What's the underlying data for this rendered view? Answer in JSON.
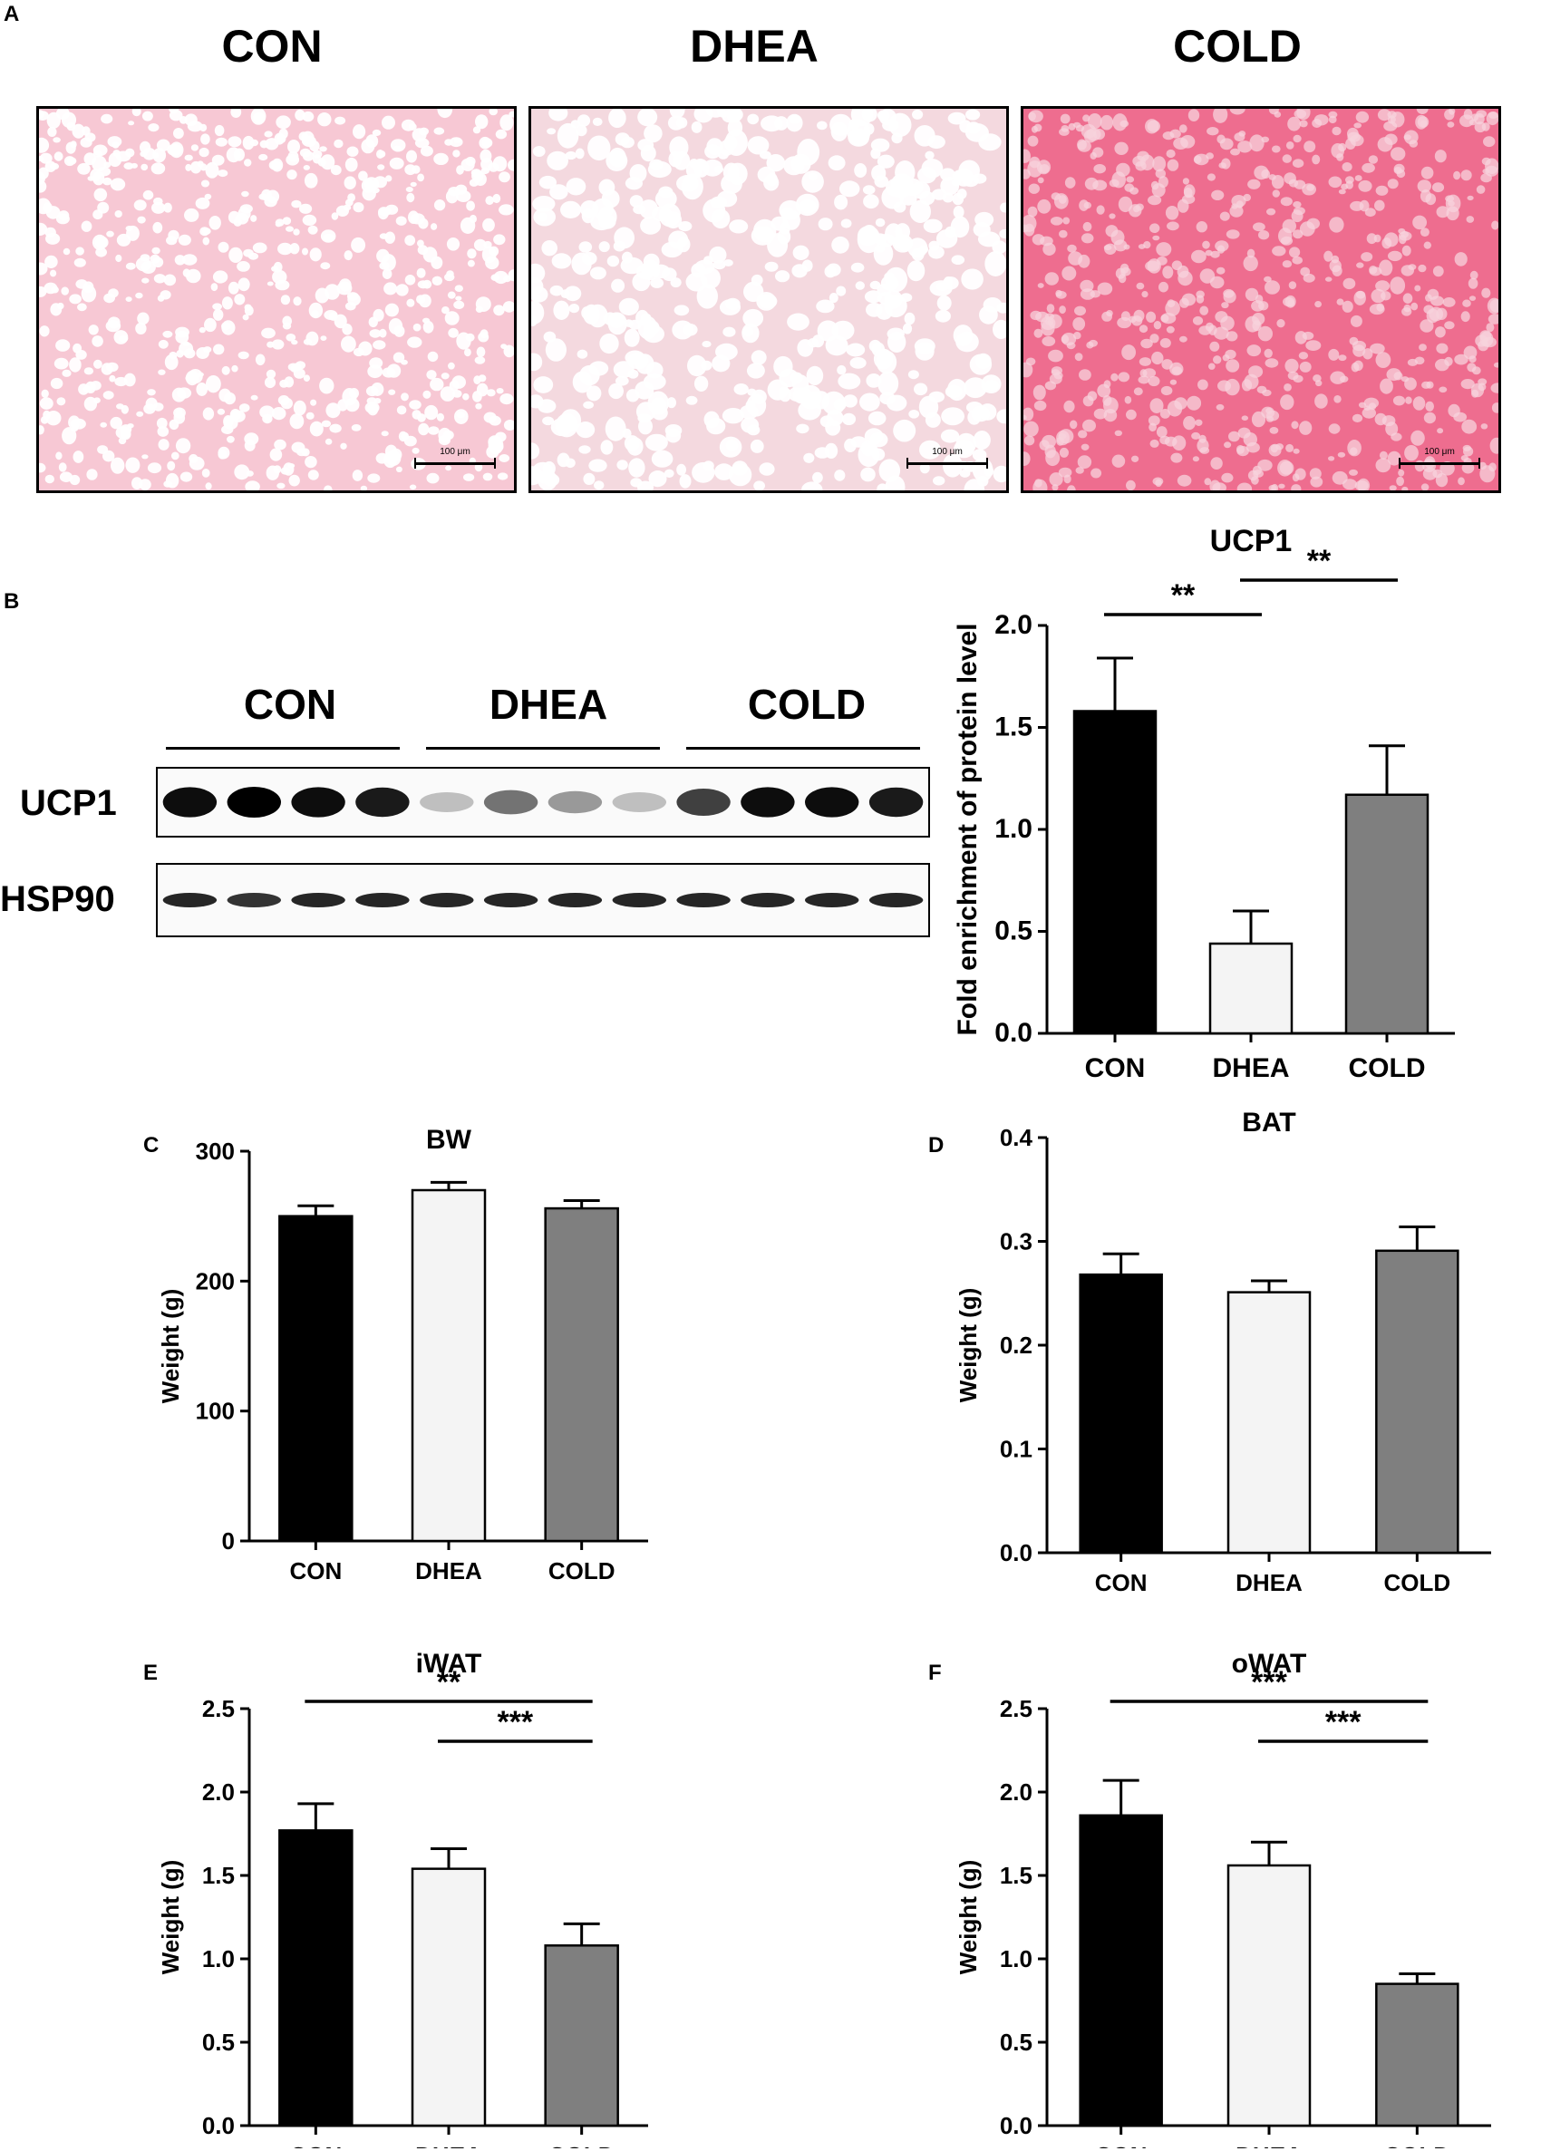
{
  "figure": {
    "panel_letters": [
      "A",
      "B",
      "C",
      "D",
      "E",
      "F"
    ],
    "micrographs": [
      {
        "title": "CON",
        "scale": "100 μm",
        "tone": "#f7c8d4",
        "cell": "#ffffff"
      },
      {
        "title": "DHEA",
        "scale": "100 μm",
        "tone": "#f4d9df",
        "cell": "#ffffff"
      },
      {
        "title": "COLD",
        "scale": "100 μm",
        "tone": "#ee6d8f",
        "cell": "#f7d3dc"
      }
    ],
    "western_blot": {
      "groups": [
        "CON",
        "DHEA",
        "COLD"
      ],
      "rows": [
        {
          "label": "UCP1",
          "intensities": [
            0.95,
            1.0,
            0.95,
            0.9,
            0.25,
            0.55,
            0.4,
            0.25,
            0.75,
            0.95,
            0.95,
            0.9
          ]
        },
        {
          "label": "HSP90",
          "intensities": [
            0.85,
            0.8,
            0.85,
            0.85,
            0.85,
            0.85,
            0.85,
            0.85,
            0.85,
            0.85,
            0.85,
            0.85
          ]
        }
      ]
    }
  },
  "chart_data": [
    {
      "id": "B",
      "type": "bar",
      "title": "UCP1",
      "categories": [
        "CON",
        "DHEA",
        "COLD"
      ],
      "values": [
        1.58,
        0.44,
        1.17
      ],
      "errors": [
        0.26,
        0.16,
        0.24
      ],
      "bar_colors": [
        "#000000",
        "#f4f4f4",
        "#7f7f7f"
      ],
      "xlabel": "",
      "ylabel": "Fold enrichment of protein level",
      "ylim": [
        0,
        2.0
      ],
      "yticks": [
        "0.0",
        "0.5",
        "1.0",
        "1.5",
        "2.0"
      ],
      "significance": [
        {
          "from": "CON",
          "to": "DHEA",
          "label": "**"
        },
        {
          "from": "DHEA",
          "to": "COLD",
          "label": "**"
        }
      ]
    },
    {
      "id": "C",
      "type": "bar",
      "title": "BW",
      "categories": [
        "CON",
        "DHEA",
        "COLD"
      ],
      "values": [
        250,
        270,
        256
      ],
      "errors": [
        8,
        6,
        6
      ],
      "bar_colors": [
        "#000000",
        "#f4f4f4",
        "#7f7f7f"
      ],
      "xlabel": "",
      "ylabel": "Weight (g)",
      "ylim": [
        0,
        300
      ],
      "yticks": [
        "0",
        "100",
        "200",
        "300"
      ],
      "significance": []
    },
    {
      "id": "D",
      "type": "bar",
      "title": "BAT",
      "categories": [
        "CON",
        "DHEA",
        "COLD"
      ],
      "values": [
        0.268,
        0.251,
        0.291
      ],
      "errors": [
        0.02,
        0.011,
        0.023
      ],
      "bar_colors": [
        "#000000",
        "#f4f4f4",
        "#7f7f7f"
      ],
      "xlabel": "",
      "ylabel": "Weight (g)",
      "ylim": [
        0,
        0.4
      ],
      "yticks": [
        "0.0",
        "0.1",
        "0.2",
        "0.3",
        "0.4"
      ],
      "significance": []
    },
    {
      "id": "E",
      "type": "bar",
      "title": "iWAT",
      "categories": [
        "CON",
        "DHEA",
        "COLD"
      ],
      "values": [
        1.77,
        1.54,
        1.08
      ],
      "errors": [
        0.16,
        0.12,
        0.13
      ],
      "bar_colors": [
        "#000000",
        "#f4f4f4",
        "#7f7f7f"
      ],
      "xlabel": "",
      "ylabel": "Weight (g)",
      "ylim": [
        0,
        2.5
      ],
      "yticks": [
        "0.0",
        "0.5",
        "1.0",
        "1.5",
        "2.0",
        "2.5"
      ],
      "significance": [
        {
          "from": "CON",
          "to": "COLD",
          "label": "**"
        },
        {
          "from": "DHEA",
          "to": "COLD",
          "label": "***"
        }
      ]
    },
    {
      "id": "F",
      "type": "bar",
      "title": "oWAT",
      "categories": [
        "CON",
        "DHEA",
        "COLD"
      ],
      "values": [
        1.86,
        1.56,
        0.85
      ],
      "errors": [
        0.21,
        0.14,
        0.06
      ],
      "bar_colors": [
        "#000000",
        "#f4f4f4",
        "#7f7f7f"
      ],
      "xlabel": "",
      "ylabel": "Weight (g)",
      "ylim": [
        0,
        2.5
      ],
      "yticks": [
        "0.0",
        "0.5",
        "1.0",
        "1.5",
        "2.0",
        "2.5"
      ],
      "significance": [
        {
          "from": "CON",
          "to": "COLD",
          "label": "***"
        },
        {
          "from": "DHEA",
          "to": "COLD",
          "label": "***"
        }
      ]
    }
  ]
}
